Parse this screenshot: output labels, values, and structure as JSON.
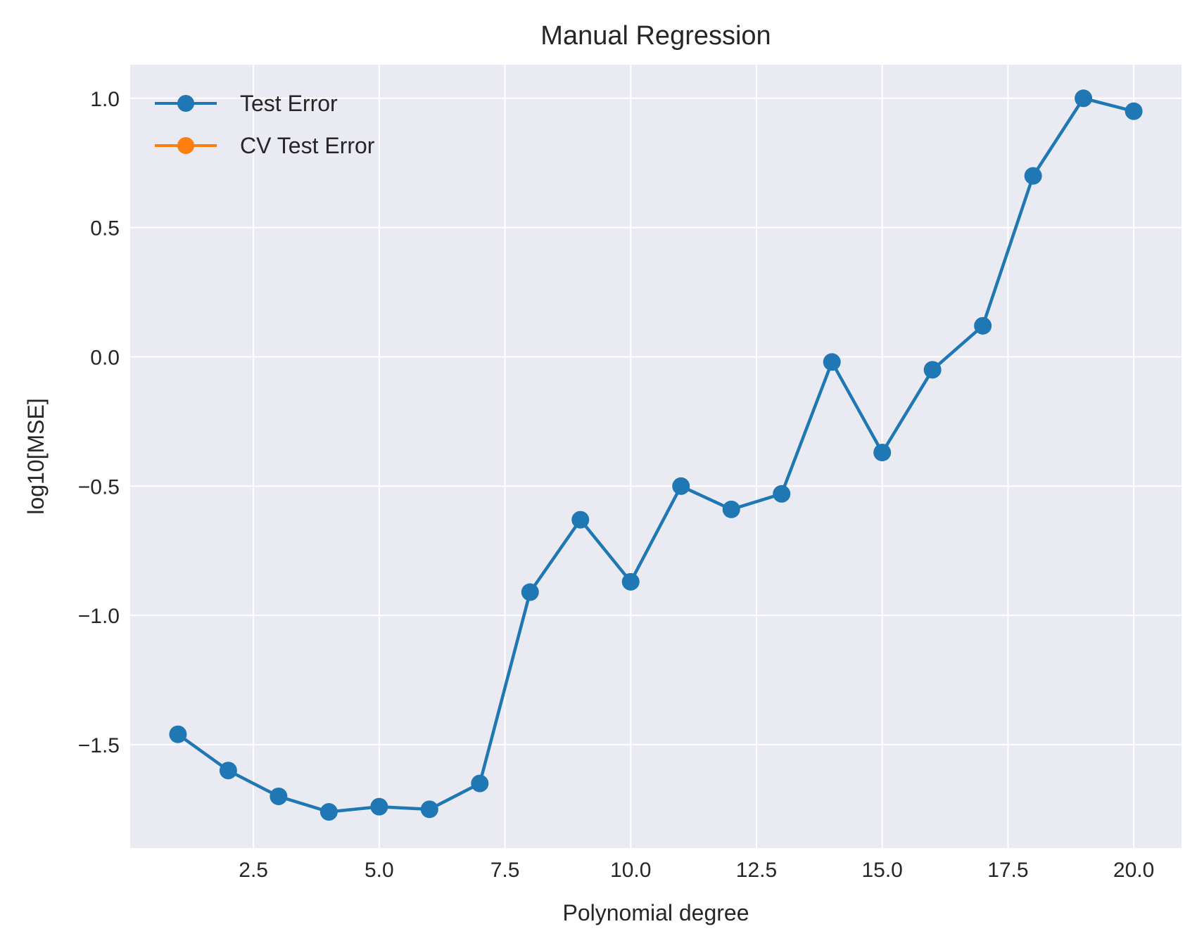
{
  "chart_data": {
    "type": "line",
    "title": "Manual Regression",
    "xlabel": "Polynomial degree",
    "ylabel": "log10[MSE]",
    "xlim": [
      0.05,
      20.95
    ],
    "ylim": [
      -1.9,
      1.13
    ],
    "xticks": [
      2.5,
      5.0,
      7.5,
      10.0,
      12.5,
      15.0,
      17.5,
      20.0
    ],
    "xtick_labels": [
      "2.5",
      "5.0",
      "7.5",
      "10.0",
      "12.5",
      "15.0",
      "17.5",
      "20.0"
    ],
    "yticks": [
      -1.5,
      -1.0,
      -0.5,
      0.0,
      0.5,
      1.0
    ],
    "ytick_labels": [
      "−1.5",
      "−1.0",
      "−0.5",
      "0.0",
      "0.5",
      "1.0"
    ],
    "grid": true,
    "legend_position": "top-left",
    "series": [
      {
        "name": "Test Error",
        "color": "#1f77b4",
        "x": [
          1,
          2,
          3,
          4,
          5,
          6,
          7,
          8,
          9,
          10,
          11,
          12,
          13,
          14,
          15,
          16,
          17,
          18,
          19,
          20
        ],
        "y": [
          -1.46,
          -1.6,
          -1.7,
          -1.76,
          -1.74,
          -1.75,
          -1.65,
          -0.91,
          -0.63,
          -0.87,
          -0.5,
          -0.59,
          -0.53,
          -0.02,
          -0.37,
          -0.05,
          0.12,
          0.7,
          1.0,
          0.95
        ]
      },
      {
        "name": "CV Test Error",
        "color": "#ff7f0e",
        "x": [],
        "y": []
      }
    ]
  }
}
